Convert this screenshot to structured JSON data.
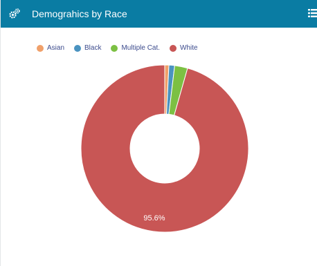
{
  "header": {
    "title": "Demograhics by Race",
    "icon": "cogs-icon",
    "menu_icon": "list-menu-icon",
    "bar_color": "#0a7ca3"
  },
  "chart_data": {
    "type": "pie",
    "donut": true,
    "title": "",
    "legend_position": "top-left",
    "categories": [
      "Asian",
      "Black",
      "Multiple Cat.",
      "White"
    ],
    "values": [
      0.8,
      1.1,
      2.5,
      95.6
    ],
    "colors": [
      "#f0a06a",
      "#4a93c0",
      "#7cc043",
      "#c85655"
    ],
    "labels": [
      "",
      "",
      "",
      "95.6%"
    ]
  }
}
